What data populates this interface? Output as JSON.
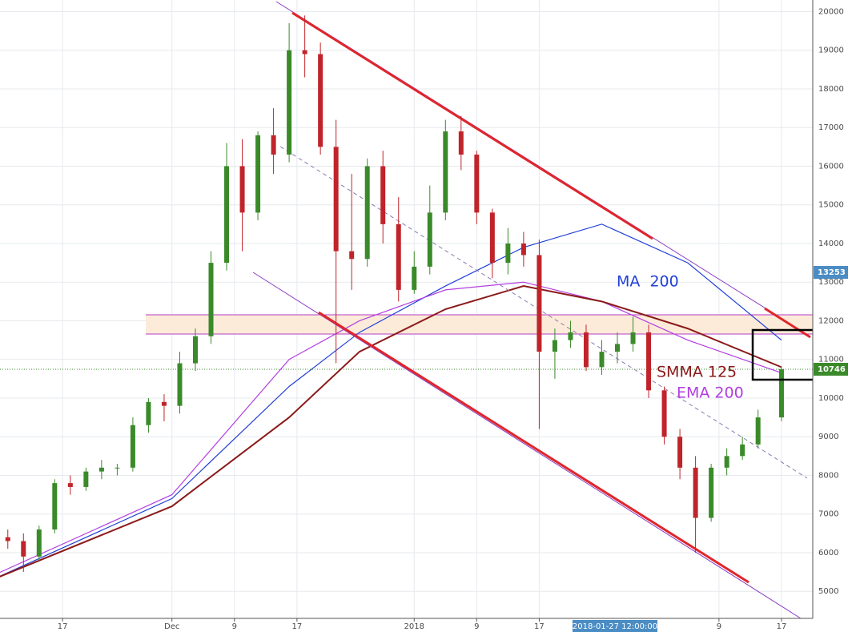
{
  "chart_data": {
    "type": "candlestick",
    "x": [
      "2017-11-10",
      "2017-11-12",
      "2017-11-14",
      "2017-11-16",
      "2017-11-18",
      "2017-11-20",
      "2017-11-22",
      "2017-11-24",
      "2017-11-26",
      "2017-11-28",
      "2017-11-30",
      "2017-12-02",
      "2017-12-04",
      "2017-12-06",
      "2017-12-08",
      "2017-12-10",
      "2017-12-12",
      "2017-12-14",
      "2017-12-16",
      "2017-12-18",
      "2017-12-20",
      "2017-12-22",
      "2017-12-24",
      "2017-12-26",
      "2017-12-28",
      "2017-12-30",
      "2018-01-01",
      "2018-01-03",
      "2018-01-05",
      "2018-01-07",
      "2018-01-09",
      "2018-01-11",
      "2018-01-13",
      "2018-01-15",
      "2018-01-17",
      "2018-01-19",
      "2018-01-21",
      "2018-01-23",
      "2018-01-25",
      "2018-01-27",
      "2018-01-29",
      "2018-01-31",
      "2018-02-02",
      "2018-02-04",
      "2018-02-06",
      "2018-02-08",
      "2018-02-10",
      "2018-02-12",
      "2018-02-14",
      "2018-02-17"
    ],
    "open": [
      6400,
      6300,
      5900,
      6600,
      7800,
      7700,
      8100,
      8200,
      8200,
      9300,
      9900,
      9800,
      10900,
      11600,
      13500,
      16000,
      14800,
      16800,
      16300,
      19000,
      18900,
      16500,
      13800,
      13600,
      16000,
      14500,
      12800,
      13400,
      14800,
      16900,
      16300,
      14800,
      13500,
      14000,
      13700,
      11200,
      11500,
      11700,
      10800,
      11200,
      11400,
      11700,
      10200,
      9000,
      8200,
      6900,
      8200,
      8500,
      8800,
      9500
    ],
    "high": [
      6600,
      6500,
      6700,
      7900,
      8000,
      8200,
      8400,
      8300,
      9500,
      10000,
      10100,
      11200,
      11800,
      13800,
      16600,
      16700,
      16900,
      17500,
      19700,
      19900,
      19200,
      17200,
      15800,
      16200,
      16400,
      15200,
      13800,
      15500,
      17200,
      17300,
      16400,
      14900,
      14400,
      14300,
      14100,
      11800,
      12000,
      11900,
      11500,
      11700,
      12100,
      11900,
      10300,
      9200,
      8500,
      8300,
      8700,
      9000,
      9700,
      10800
    ],
    "low": [
      6100,
      5500,
      5800,
      6500,
      7500,
      7600,
      7900,
      8000,
      8100,
      9100,
      9400,
      9600,
      10700,
      11400,
      13300,
      13800,
      14600,
      15800,
      16100,
      18300,
      16300,
      10900,
      12800,
      13400,
      14000,
      12500,
      12700,
      13200,
      14600,
      15900,
      14500,
      13100,
      13200,
      13400,
      9200,
      10500,
      11300,
      10700,
      10600,
      10900,
      11200,
      10000,
      8800,
      7900,
      6000,
      6800,
      8000,
      8400,
      8700,
      9400
    ],
    "close": [
      6300,
      5900,
      6600,
      7800,
      7700,
      8100,
      8200,
      8200,
      9300,
      9900,
      9800,
      10900,
      11600,
      13500,
      16000,
      14800,
      16800,
      16300,
      19000,
      18900,
      16500,
      13800,
      13600,
      16000,
      14500,
      12800,
      13400,
      14800,
      16900,
      16300,
      14800,
      13500,
      14000,
      13700,
      11200,
      11500,
      11700,
      10800,
      11200,
      11400,
      11700,
      10200,
      9000,
      8200,
      6900,
      8200,
      8500,
      8800,
      9500,
      10746
    ],
    "up_color": "#3a8a2a",
    "down_color": "#c0242b",
    "indicators": [
      {
        "name": "MA  200",
        "color": "#2341d6",
        "x": [
          "2017-11-08",
          "2017-12-01",
          "2017-12-16",
          "2017-12-25",
          "2018-01-05",
          "2018-01-15",
          "2018-01-25",
          "2018-02-05",
          "2018-02-17"
        ],
        "values": [
          5300,
          7400,
          10300,
          11700,
          12900,
          13900,
          14500,
          13500,
          11500
        ]
      },
      {
        "name": "EMA 200",
        "color": "#b23ee0",
        "x": [
          "2017-11-08",
          "2017-12-01",
          "2017-12-16",
          "2017-12-25",
          "2018-01-05",
          "2018-01-15",
          "2018-01-25",
          "2018-02-05",
          "2018-02-17"
        ],
        "values": [
          5400,
          7500,
          11000,
          12000,
          12800,
          13000,
          12500,
          11500,
          10650
        ]
      },
      {
        "name": "SMMA 125",
        "color": "#8b1a1a",
        "x": [
          "2017-11-08",
          "2017-12-01",
          "2017-12-16",
          "2017-12-25",
          "2018-01-05",
          "2018-01-15",
          "2018-01-25",
          "2018-02-05",
          "2018-02-17"
        ],
        "values": [
          5300,
          7200,
          9500,
          11200,
          12300,
          12900,
          12500,
          11800,
          10800
        ]
      }
    ],
    "ylim": [
      4300,
      20300
    ],
    "yticks": [
      5000,
      6000,
      7000,
      8000,
      9000,
      10000,
      11000,
      12000,
      13000,
      14000,
      15000,
      16000,
      17000,
      18000,
      19000,
      20000
    ],
    "xlim": [
      "2017-11-09",
      "2018-02-21"
    ],
    "xticks": [
      {
        "value": "2017-11-17",
        "label": "17"
      },
      {
        "value": "2017-12-01",
        "label": "Dec"
      },
      {
        "value": "2017-12-09",
        "label": "9"
      },
      {
        "value": "2017-12-17",
        "label": "17"
      },
      {
        "value": "2018-01-01",
        "label": "2018"
      },
      {
        "value": "2018-01-09",
        "label": "9"
      },
      {
        "value": "2018-01-17",
        "label": "17"
      },
      {
        "value": "2018-02-09",
        "label": "9"
      },
      {
        "value": "2018-02-17",
        "label": "17"
      }
    ],
    "price_tags": [
      {
        "value": 13253,
        "color": "#4a8cc4"
      },
      {
        "value": 10746,
        "color": "#3a8a2a"
      }
    ],
    "crosshair_label": "2018-01-27 12:00:00",
    "grid": true
  }
}
